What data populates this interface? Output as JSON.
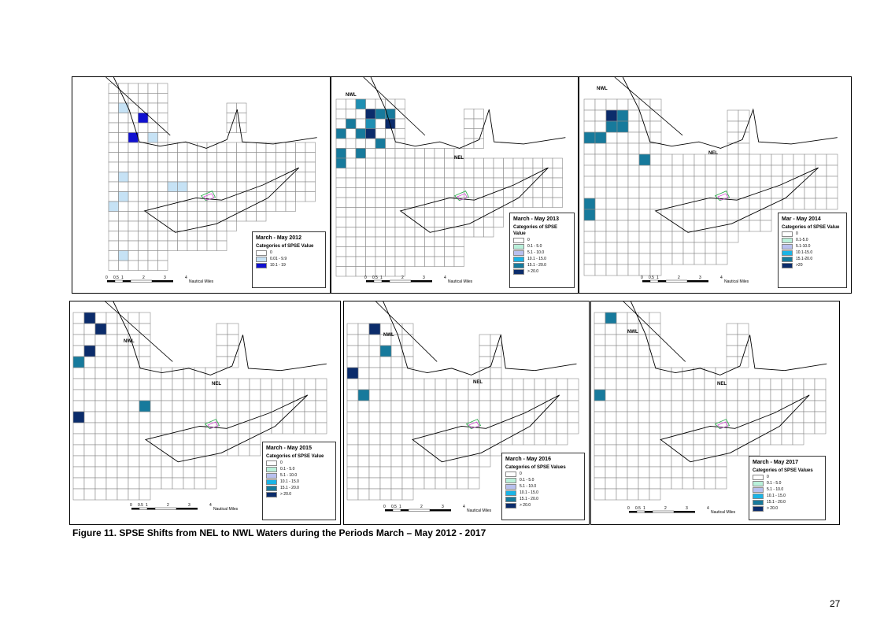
{
  "caption": "Figure 11.  SPSE Shifts from NEL to NWL Waters during the Periods March – May 2012 - 2017",
  "page_number": "27",
  "colors": {
    "grid": "#8a8a8a",
    "coast": "#000000",
    "lightblue": "#c6e2f5",
    "medblue": "#1f8fb3",
    "teal": "#177a9c",
    "navy": "#0b2c6b",
    "royal": "#1010d0",
    "mint": "#b9f0da",
    "lavender": "#b8c0ee",
    "cyan": "#1ab4e6"
  },
  "panels": [
    {
      "id": "2012",
      "title": "March - May 2012",
      "subtitle": "Categories of SPSE Value",
      "legend": [
        {
          "label": "0",
          "color": "#ffffff"
        },
        {
          "label": "0.01 - 9.9",
          "color": "#c6e2f5"
        },
        {
          "label": "10.1 - 19",
          "color": "#1010d0"
        }
      ],
      "map_labels": [],
      "scale_text": [
        "0",
        "0.5",
        "1",
        "2",
        "3",
        "4",
        "Nautical Miles"
      ]
    },
    {
      "id": "2013",
      "title": "March - May 2013",
      "subtitle": "Categories of SPSE Value",
      "legend": [
        {
          "label": "0",
          "color": "#ffffff"
        },
        {
          "label": "0.1 - 5.0",
          "color": "#b9f0da"
        },
        {
          "label": "5.1 - 10.0",
          "color": "#b8c0ee"
        },
        {
          "label": "10.1 - 15.0",
          "color": "#1ab4e6"
        },
        {
          "label": "15.1 - 20.0",
          "color": "#177a9c"
        },
        {
          "label": "> 20.0",
          "color": "#0b2c6b"
        }
      ],
      "map_labels": [
        "NWL",
        "NEL"
      ],
      "scale_text": [
        "0",
        "0.5",
        "1",
        "2",
        "3",
        "4",
        "Nautical Miles"
      ]
    },
    {
      "id": "2014",
      "title": "Mar - May 2014",
      "subtitle": "Categories of SPSE Value",
      "legend": [
        {
          "label": "0",
          "color": "#ffffff"
        },
        {
          "label": "0.1-5.0",
          "color": "#b9f0da"
        },
        {
          "label": "5.1-10.0",
          "color": "#b8c0ee"
        },
        {
          "label": "10.1-15.0",
          "color": "#1ab4e6"
        },
        {
          "label": "15.1-20.0",
          "color": "#177a9c"
        },
        {
          "label": ">20",
          "color": "#0b2c6b"
        }
      ],
      "map_labels": [
        "NWL",
        "NEL"
      ],
      "scale_text": [
        "0",
        "0.5",
        "1",
        "2",
        "3",
        "4",
        "Nautical Miles"
      ]
    },
    {
      "id": "2015",
      "title": "March - May 2015",
      "subtitle": "Categories of SPSE Value",
      "legend": [
        {
          "label": "0",
          "color": "#ffffff"
        },
        {
          "label": "0.1 - 5.0",
          "color": "#b9f0da"
        },
        {
          "label": "5.1 - 10.0",
          "color": "#b8c0ee"
        },
        {
          "label": "10.1 - 15.0",
          "color": "#1ab4e6"
        },
        {
          "label": "15.1 - 20.0",
          "color": "#177a9c"
        },
        {
          "label": "> 20.0",
          "color": "#0b2c6b"
        }
      ],
      "map_labels": [
        "NWL",
        "NEL"
      ],
      "scale_text": [
        "0",
        "0.5",
        "1",
        "2",
        "3",
        "4",
        "Nautical Miles"
      ]
    },
    {
      "id": "2016",
      "title": "March - May 2016",
      "subtitle": "Categories of SPSE Values",
      "legend": [
        {
          "label": "0",
          "color": "#ffffff"
        },
        {
          "label": "0.1 - 5.0",
          "color": "#b9f0da"
        },
        {
          "label": "5.1 - 10.0",
          "color": "#b8c0ee"
        },
        {
          "label": "10.1 - 15.0",
          "color": "#1ab4e6"
        },
        {
          "label": "15.1 - 20.0",
          "color": "#177a9c"
        },
        {
          "label": "> 20.0",
          "color": "#0b2c6b"
        }
      ],
      "map_labels": [
        "NWL",
        "NEL"
      ],
      "scale_text": [
        "0",
        "0.5",
        "1",
        "2",
        "3",
        "4",
        "Nautical Miles"
      ]
    },
    {
      "id": "2017",
      "title": "March - May 2017",
      "subtitle": "Categories of SPSE Values",
      "legend": [
        {
          "label": "0",
          "color": "#ffffff"
        },
        {
          "label": "0.1 - 5.0",
          "color": "#b9f0da"
        },
        {
          "label": "5.1 - 10.0",
          "color": "#b8c0ee"
        },
        {
          "label": "10.1 - 15.0",
          "color": "#1ab4e6"
        },
        {
          "label": "15.1 - 20.0",
          "color": "#177a9c"
        },
        {
          "label": "> 20.0",
          "color": "#0b2c6b"
        }
      ],
      "map_labels": [
        "NWL",
        "NEL"
      ],
      "scale_text": [
        "0",
        "0.5",
        "1",
        "2",
        "3",
        "4",
        "Nautical Miles"
      ]
    }
  ]
}
